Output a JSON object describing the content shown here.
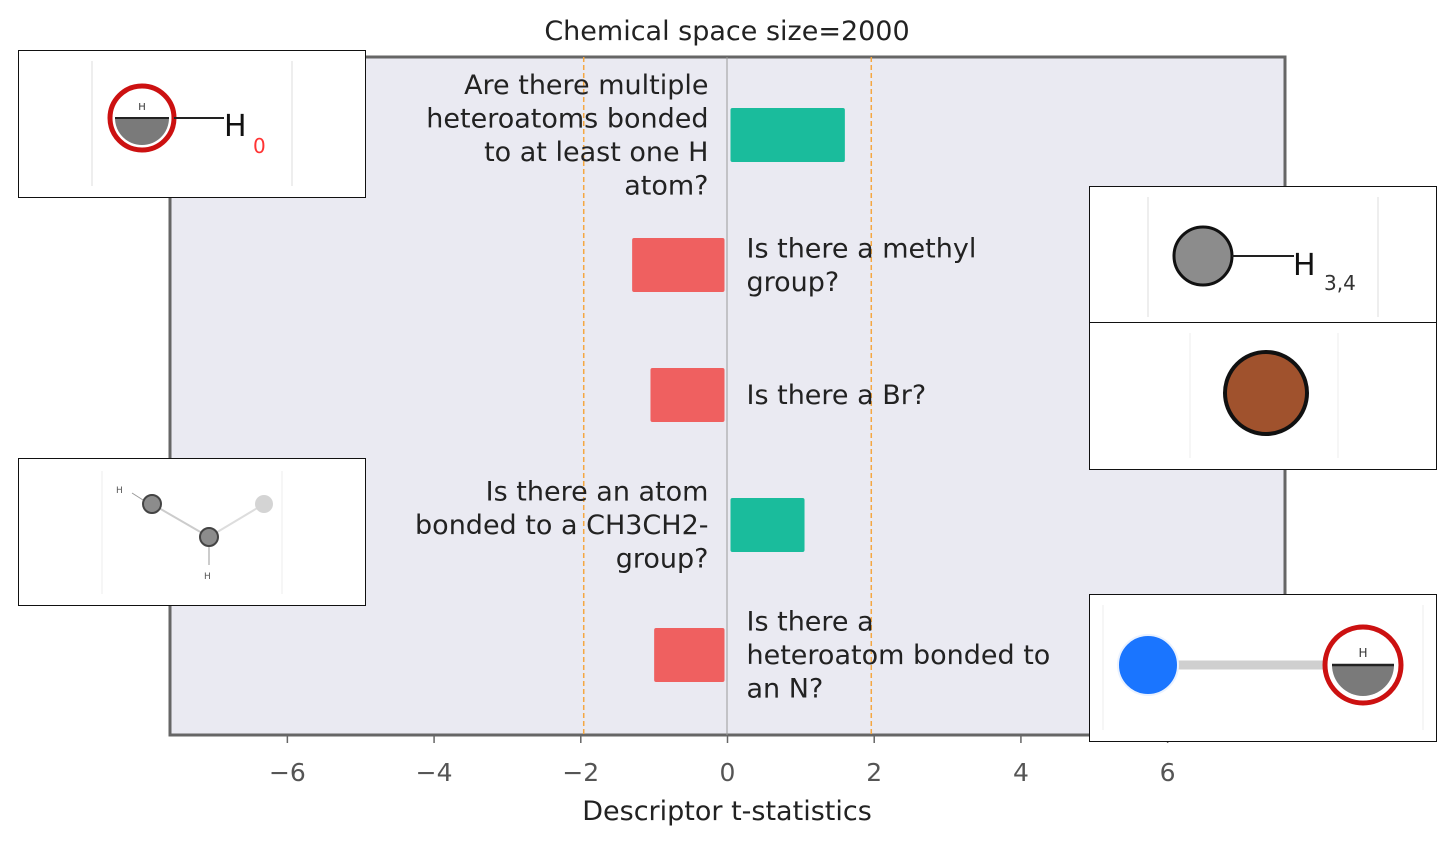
{
  "chart_data": {
    "type": "bar",
    "orientation": "horizontal",
    "title": "Chemical space size=2000",
    "xlabel": "Descriptor t-statistics",
    "ylabel": "",
    "xlim": [
      -7.6,
      7.6
    ],
    "xticks": [
      -6,
      -4,
      -2,
      0,
      2,
      4,
      6
    ],
    "xtick_labels": [
      "−6",
      "−4",
      "−2",
      "0",
      "2",
      "4",
      "6"
    ],
    "threshold_lines": [
      -1.96,
      1.96
    ],
    "grid": false,
    "bars": [
      {
        "label": "Are there multiple heteroatoms bonded to at least one H atom?",
        "value": 1.6
      },
      {
        "label": "Is there a methyl group?",
        "value": -1.3
      },
      {
        "label": "Is there a Br?",
        "value": -1.05
      },
      {
        "label": "Is there an atom bonded to a CH3CH2- group?",
        "value": 1.05
      },
      {
        "label": "Is there a heteroatom bonded to an N?",
        "value": -1.0
      }
    ],
    "colors": {
      "positive": "#1abc9c",
      "negative": "#ef6060",
      "threshold": "#f5a742",
      "background": "#eaeaf2",
      "zero_line": "#999999"
    }
  },
  "insets": {
    "inset1": {
      "atom_label": "H",
      "atom_label_small": "H",
      "subscript": "0"
    },
    "inset2": {
      "atom_label": "H",
      "subscript": "3,4"
    },
    "inset4": {
      "label_top": "H",
      "label_bottom": "H"
    },
    "inset5": {
      "atom_label_small": "H"
    }
  }
}
